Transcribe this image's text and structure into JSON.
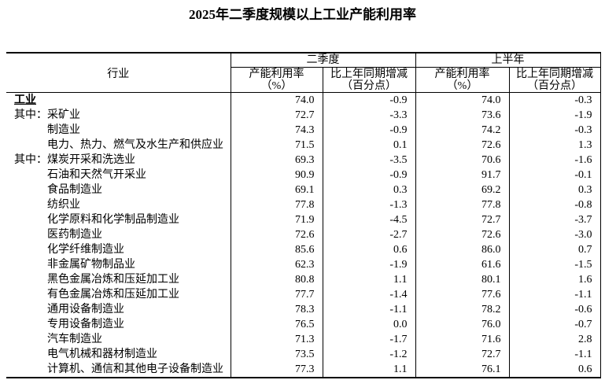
{
  "page": {
    "title": "2025年二季度规模以上工业产能利用率"
  },
  "table": {
    "industry_header": "行业",
    "groups": [
      {
        "label": "二季度"
      },
      {
        "label": "上半年"
      }
    ],
    "sub": {
      "util_l1": "产能利用率",
      "util_l2": "（%）",
      "chg_l1": "比上年同期增减",
      "chg_l2": "（百分点）"
    },
    "rows": [
      {
        "prefix": "",
        "name": "工业",
        "style": "total",
        "q2_util": "74.0",
        "q2_chg": "-0.9",
        "h1_util": "74.0",
        "h1_chg": "-0.3"
      },
      {
        "prefix": "其中：",
        "name": "采矿业",
        "style": "prefix",
        "q2_util": "72.7",
        "q2_chg": "-3.3",
        "h1_util": "73.6",
        "h1_chg": "-1.9"
      },
      {
        "prefix": "",
        "name": "制造业",
        "style": "indent",
        "q2_util": "74.3",
        "q2_chg": "-0.9",
        "h1_util": "74.2",
        "h1_chg": "-0.3"
      },
      {
        "prefix": "",
        "name": "电力、热力、燃气及水生产和供应业",
        "style": "indent",
        "q2_util": "71.5",
        "q2_chg": "0.1",
        "h1_util": "72.6",
        "h1_chg": "1.3"
      },
      {
        "prefix": "其中：",
        "name": "煤炭开采和洗选业",
        "style": "prefix",
        "q2_util": "69.3",
        "q2_chg": "-3.5",
        "h1_util": "70.6",
        "h1_chg": "-1.6"
      },
      {
        "prefix": "",
        "name": "石油和天然气开采业",
        "style": "indent",
        "q2_util": "90.9",
        "q2_chg": "-0.9",
        "h1_util": "91.7",
        "h1_chg": "-0.1"
      },
      {
        "prefix": "",
        "name": "食品制造业",
        "style": "indent",
        "q2_util": "69.1",
        "q2_chg": "0.3",
        "h1_util": "69.2",
        "h1_chg": "0.3"
      },
      {
        "prefix": "",
        "name": "纺织业",
        "style": "indent",
        "q2_util": "77.8",
        "q2_chg": "-1.3",
        "h1_util": "77.8",
        "h1_chg": "-0.8"
      },
      {
        "prefix": "",
        "name": "化学原料和化学制品制造业",
        "style": "indent",
        "q2_util": "71.9",
        "q2_chg": "-4.5",
        "h1_util": "72.7",
        "h1_chg": "-3.7"
      },
      {
        "prefix": "",
        "name": "医药制造业",
        "style": "indent",
        "q2_util": "72.6",
        "q2_chg": "-2.7",
        "h1_util": "72.6",
        "h1_chg": "-3.0"
      },
      {
        "prefix": "",
        "name": "化学纤维制造业",
        "style": "indent",
        "q2_util": "85.6",
        "q2_chg": "0.6",
        "h1_util": "86.0",
        "h1_chg": "0.7"
      },
      {
        "prefix": "",
        "name": "非金属矿物制品业",
        "style": "indent",
        "q2_util": "62.3",
        "q2_chg": "-1.9",
        "h1_util": "61.6",
        "h1_chg": "-1.5"
      },
      {
        "prefix": "",
        "name": "黑色金属冶炼和压延加工业",
        "style": "indent",
        "q2_util": "80.8",
        "q2_chg": "1.1",
        "h1_util": "80.1",
        "h1_chg": "1.6"
      },
      {
        "prefix": "",
        "name": "有色金属冶炼和压延加工业",
        "style": "indent",
        "q2_util": "77.7",
        "q2_chg": "-1.4",
        "h1_util": "77.6",
        "h1_chg": "-1.1"
      },
      {
        "prefix": "",
        "name": "通用设备制造业",
        "style": "indent",
        "q2_util": "78.3",
        "q2_chg": "-1.1",
        "h1_util": "78.2",
        "h1_chg": "-0.6"
      },
      {
        "prefix": "",
        "name": "专用设备制造业",
        "style": "indent",
        "q2_util": "76.5",
        "q2_chg": "0.0",
        "h1_util": "76.0",
        "h1_chg": "-0.7"
      },
      {
        "prefix": "",
        "name": "汽车制造业",
        "style": "indent",
        "q2_util": "71.3",
        "q2_chg": "-1.7",
        "h1_util": "71.6",
        "h1_chg": "2.8"
      },
      {
        "prefix": "",
        "name": "电气机械和器材制造业",
        "style": "indent",
        "q2_util": "73.5",
        "q2_chg": "-1.2",
        "h1_util": "72.7",
        "h1_chg": "-1.1"
      },
      {
        "prefix": "",
        "name": "计算机、通信和其他电子设备制造业",
        "style": "indent",
        "q2_util": "77.3",
        "q2_chg": "1.1",
        "h1_util": "76.1",
        "h1_chg": "0.6"
      }
    ]
  },
  "chart_data": {
    "type": "table",
    "title": "2025年二季度规模以上工业产能利用率",
    "categories": [
      "工业",
      "采矿业",
      "制造业",
      "电力、热力、燃气及水生产和供应业",
      "煤炭开采和洗选业",
      "石油和天然气开采业",
      "食品制造业",
      "纺织业",
      "化学原料和化学制品制造业",
      "医药制造业",
      "化学纤维制造业",
      "非金属矿物制品业",
      "黑色金属冶炼和压延加工业",
      "有色金属冶炼和压延加工业",
      "通用设备制造业",
      "专用设备制造业",
      "汽车制造业",
      "电气机械和器材制造业",
      "计算机、通信和其他电子设备制造业"
    ],
    "series": [
      {
        "name": "二季度 产能利用率（%）",
        "values": [
          74.0,
          72.7,
          74.3,
          71.5,
          69.3,
          90.9,
          69.1,
          77.8,
          71.9,
          72.6,
          85.6,
          62.3,
          80.8,
          77.7,
          78.3,
          76.5,
          71.3,
          73.5,
          77.3
        ]
      },
      {
        "name": "二季度 比上年同期增减（百分点）",
        "values": [
          -0.9,
          -3.3,
          -0.9,
          0.1,
          -3.5,
          -0.9,
          0.3,
          -1.3,
          -4.5,
          -2.7,
          0.6,
          -1.9,
          1.1,
          -1.4,
          -1.1,
          0.0,
          -1.7,
          -1.2,
          1.1
        ]
      },
      {
        "name": "上半年 产能利用率（%）",
        "values": [
          74.0,
          73.6,
          74.2,
          72.6,
          70.6,
          91.7,
          69.2,
          77.8,
          72.7,
          72.6,
          86.0,
          61.6,
          80.1,
          77.6,
          78.2,
          76.0,
          71.6,
          72.7,
          76.1
        ]
      },
      {
        "name": "上半年 比上年同期增减（百分点）",
        "values": [
          -0.3,
          -1.9,
          -0.3,
          1.3,
          -1.6,
          -0.1,
          0.3,
          -0.8,
          -3.7,
          -3.0,
          0.7,
          -1.5,
          1.6,
          -1.1,
          -0.6,
          -0.7,
          2.8,
          -1.1,
          0.6
        ]
      }
    ]
  }
}
